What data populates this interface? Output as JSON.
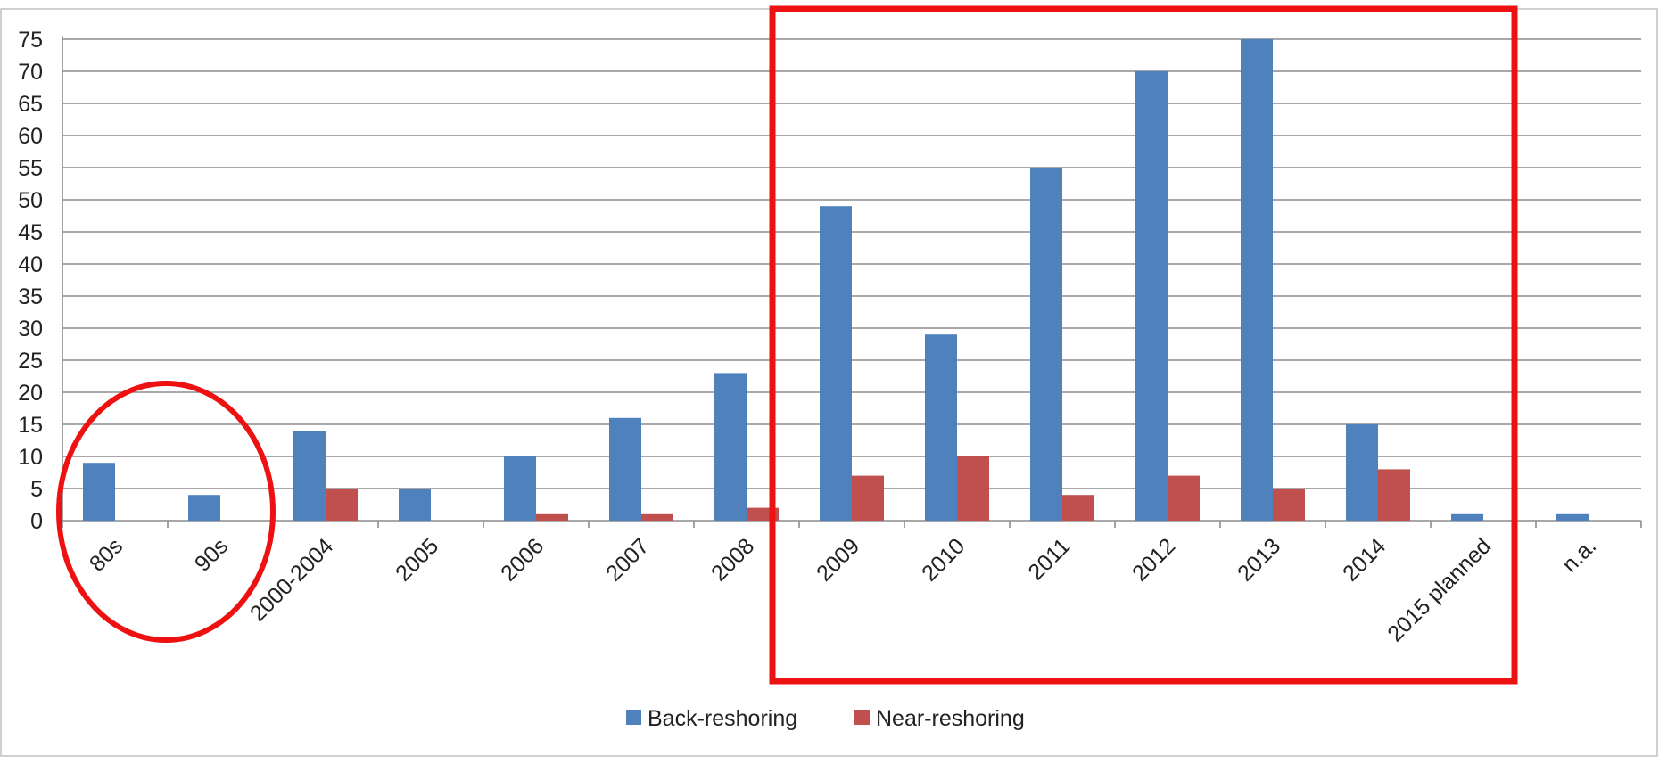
{
  "chart_data": {
    "type": "bar",
    "categories": [
      "80s",
      "90s",
      "2000-2004",
      "2005",
      "2006",
      "2007",
      "2008",
      "2009",
      "2010",
      "2011",
      "2012",
      "2013",
      "2014",
      "2015 planned",
      "n.a."
    ],
    "series": [
      {
        "name": "Back-reshoring",
        "values": [
          9,
          4,
          14,
          5,
          10,
          16,
          23,
          49,
          29,
          55,
          70,
          75,
          15,
          1,
          1
        ]
      },
      {
        "name": "Near-reshoring",
        "values": [
          0,
          0,
          5,
          0,
          1,
          1,
          2,
          7,
          10,
          4,
          7,
          5,
          8,
          0,
          0
        ]
      }
    ],
    "ylim": [
      0,
      75
    ],
    "yticks": [
      0,
      5,
      10,
      15,
      20,
      25,
      30,
      35,
      40,
      45,
      50,
      55,
      60,
      65,
      70,
      75
    ],
    "grid": true,
    "legend": "bottom",
    "colors": {
      "Back-reshoring": "#4f81bd",
      "Near-reshoring": "#c0504d",
      "highlight": "#ee1111"
    },
    "annotations": [
      {
        "type": "ellipse",
        "around": [
          "80s",
          "90s"
        ]
      },
      {
        "type": "rectangle",
        "around": [
          "2009",
          "2010",
          "2011",
          "2012",
          "2013",
          "2014",
          "2015 planned"
        ]
      }
    ]
  }
}
